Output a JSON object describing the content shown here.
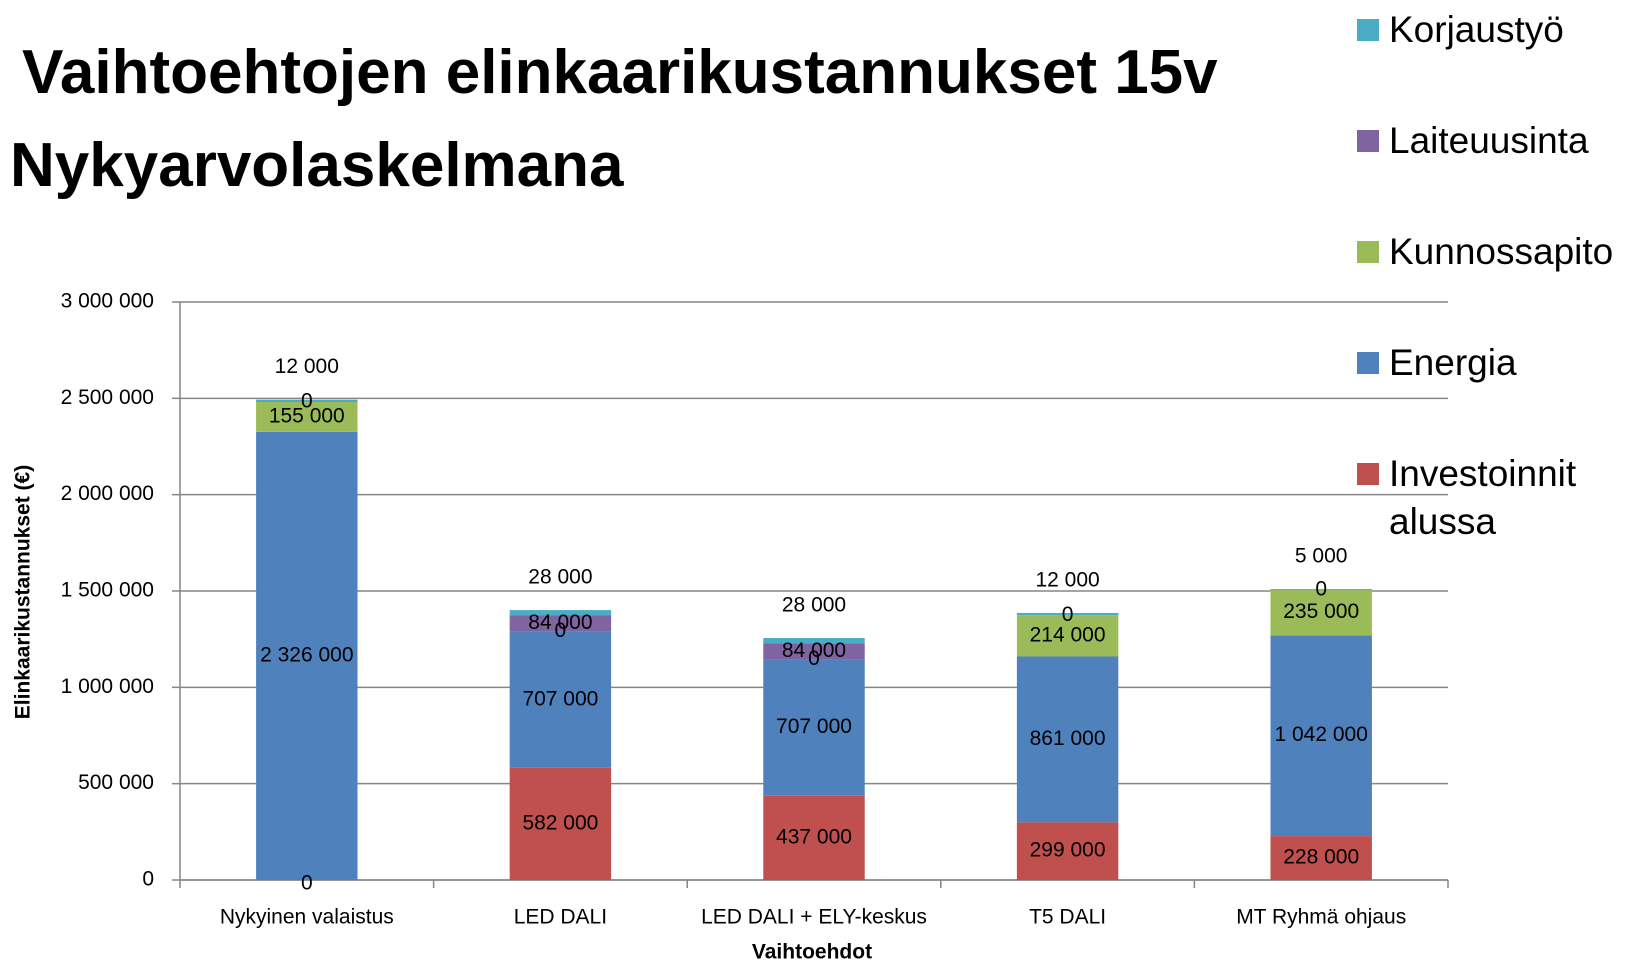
{
  "chart_data": {
    "type": "stacked-bar",
    "title": "Vaihtoehtojen elinkaarikustannukset 15v",
    "subtitle": "Nykyarvolaskelmana",
    "x_label": "Vaihtoehdot",
    "y_label": "Elinkaarikustannukset (€)",
    "categories": [
      "Nykyinen valaistus",
      "LED DALI",
      "LED DALI + ELY-keskus",
      "T5 DALI",
      "MT Ryhmä ohjaus"
    ],
    "series": [
      {
        "name": "Investoinnit alussa",
        "color": "#c0504d",
        "values": [
          0,
          582000,
          437000,
          299000,
          228000
        ],
        "value_labels": [
          "0",
          "582 000",
          "437 000",
          "299 000",
          "228 000"
        ]
      },
      {
        "name": "Energia",
        "color": "#4f81bd",
        "values": [
          2326000,
          707000,
          707000,
          861000,
          1042000
        ],
        "value_labels": [
          "2 326 000",
          "707 000",
          "707 000",
          "861 000",
          "1 042 000"
        ]
      },
      {
        "name": "Kunnossapito",
        "color": "#9bbb59",
        "values": [
          155000,
          0,
          0,
          214000,
          235000
        ],
        "value_labels": [
          "155 000",
          "0",
          "0",
          "214 000",
          "235 000"
        ]
      },
      {
        "name": "Laiteuusinta",
        "color": "#8064a2",
        "values": [
          0,
          84000,
          84000,
          0,
          0
        ],
        "value_labels": [
          "0",
          "84 000",
          "84 000",
          "0",
          "0"
        ]
      },
      {
        "name": "Korjaustyö",
        "color": "#4bacc6",
        "values": [
          12000,
          28000,
          28000,
          12000,
          5000
        ],
        "value_labels": [
          "12 000",
          "28 000",
          "28 000",
          "12 000",
          "5 000"
        ]
      }
    ],
    "ylim": [
      0,
      3000000
    ],
    "yticks": [
      0,
      {
        "value": 500000,
        "label": "500 000"
      },
      {
        "value": 1000000,
        "label": "1 000 000"
      },
      {
        "value": 1500000,
        "label": "1 500 000"
      },
      {
        "value": 2000000,
        "label": "2 000 000"
      },
      {
        "value": 2500000,
        "label": "2 500 000"
      },
      {
        "value": 3000000,
        "label": "3 000 000"
      }
    ],
    "grid": true
  }
}
